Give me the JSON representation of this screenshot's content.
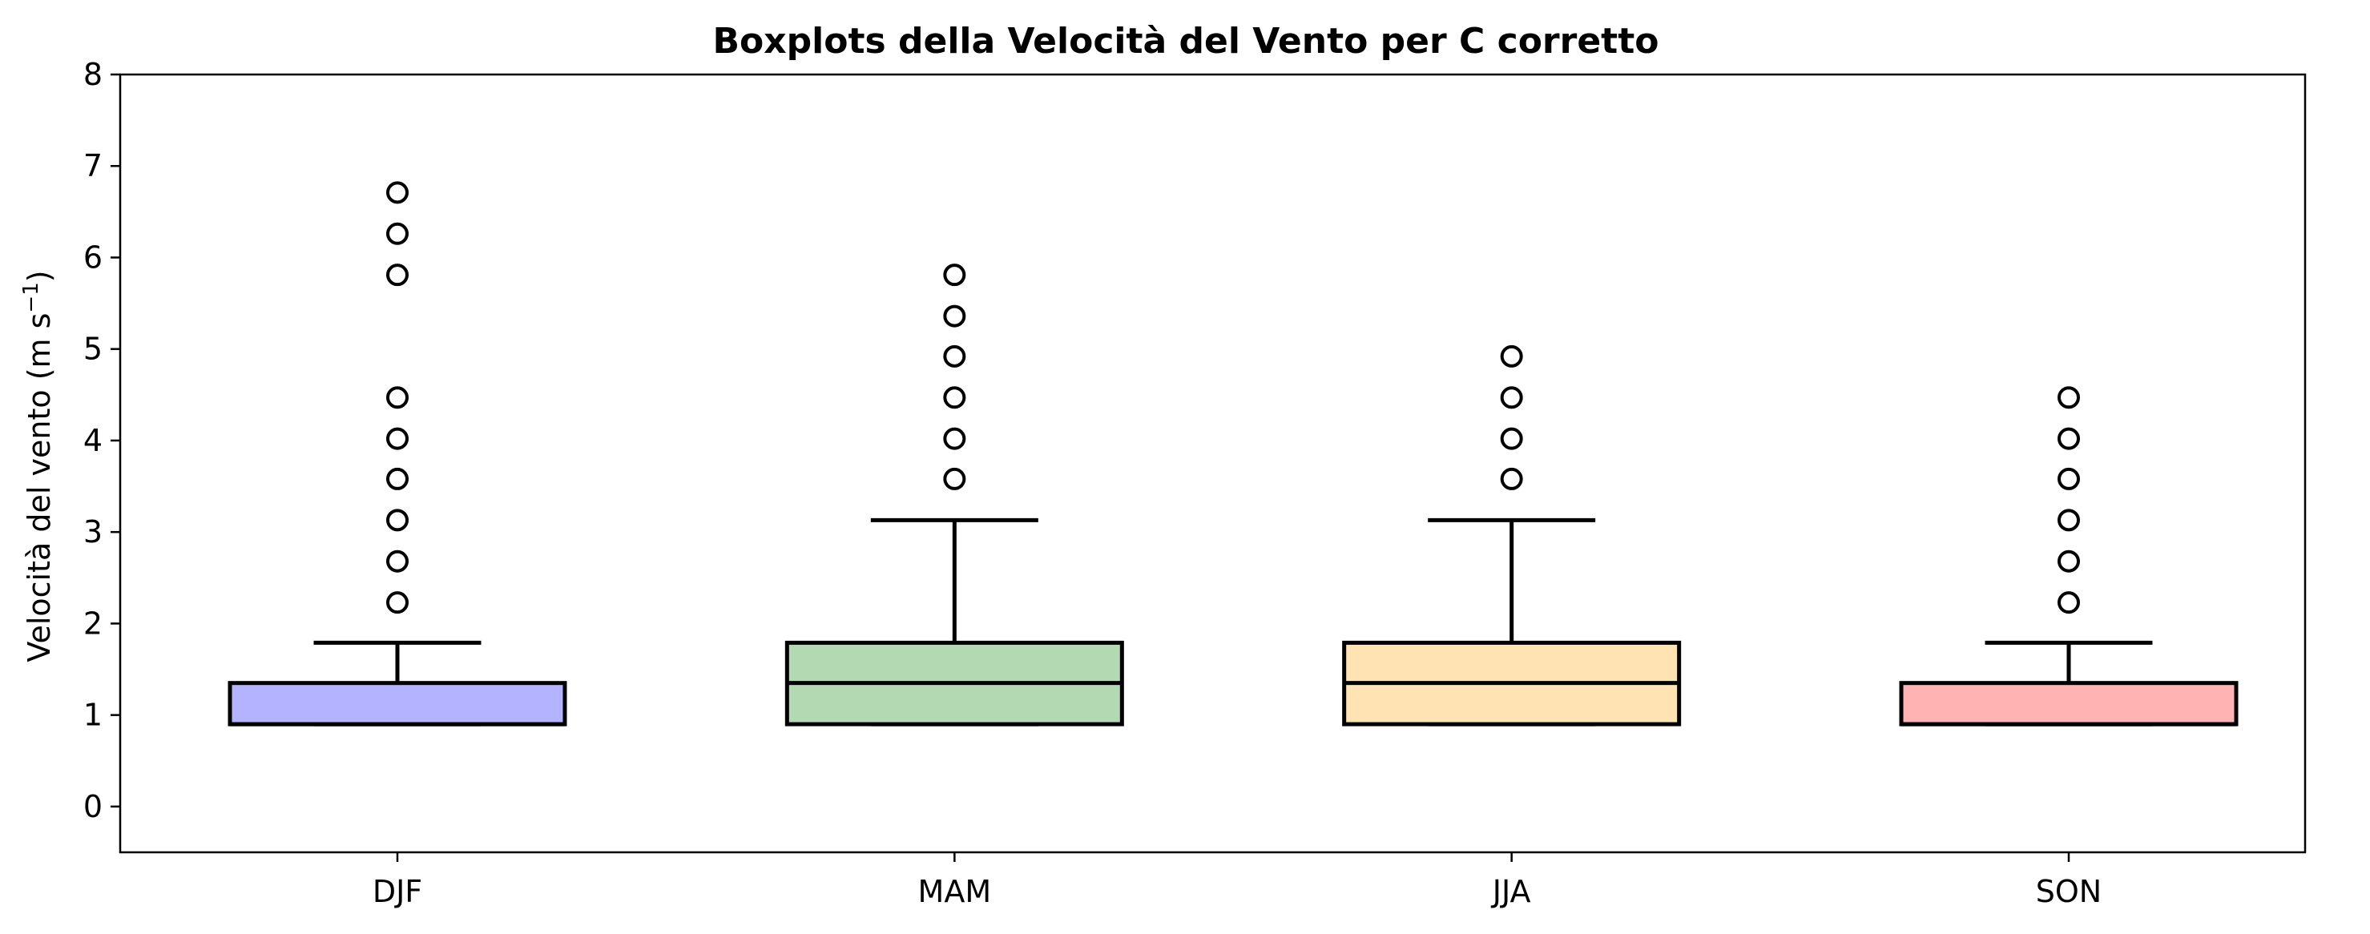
{
  "chart_data": {
    "type": "boxplot",
    "title": "Boxplots della Velocità del Vento per C corretto",
    "xlabel": "",
    "ylabel": "Velocità del vento (m s",
    "ylabel_unit_exponent": "−1",
    "ylabel_close": ")",
    "ylim": [
      -0.5,
      8
    ],
    "yticks": [
      "0",
      "1",
      "2",
      "3",
      "4",
      "5",
      "6",
      "7",
      "8"
    ],
    "grid": false,
    "categories": [
      "DJF",
      "MAM",
      "JJA",
      "SON"
    ],
    "boxes": [
      {
        "label": "DJF",
        "color": "#b3b3ff",
        "whislo": 0.9,
        "q1": 0.9,
        "median": 0.9,
        "q3": 1.35,
        "whishi": 1.79,
        "fliers": [
          2.23,
          2.68,
          3.13,
          3.58,
          4.02,
          4.47,
          5.81,
          6.26,
          6.71
        ]
      },
      {
        "label": "MAM",
        "color": "#b3d9b3",
        "whislo": 0.9,
        "q1": 0.9,
        "median": 1.35,
        "q3": 1.79,
        "whishi": 3.13,
        "fliers": [
          3.58,
          4.02,
          4.47,
          4.92,
          5.36,
          5.81
        ]
      },
      {
        "label": "JJA",
        "color": "#ffe3b3",
        "whislo": 0.9,
        "q1": 0.9,
        "median": 1.35,
        "q3": 1.79,
        "whishi": 3.13,
        "fliers": [
          3.58,
          4.02,
          4.47,
          4.92
        ]
      },
      {
        "label": "SON",
        "color": "#ffb3b3",
        "whislo": 0.9,
        "q1": 0.9,
        "median": 0.9,
        "q3": 1.35,
        "whishi": 1.79,
        "fliers": [
          2.23,
          2.68,
          3.13,
          3.58,
          4.02,
          4.47
        ]
      }
    ]
  }
}
